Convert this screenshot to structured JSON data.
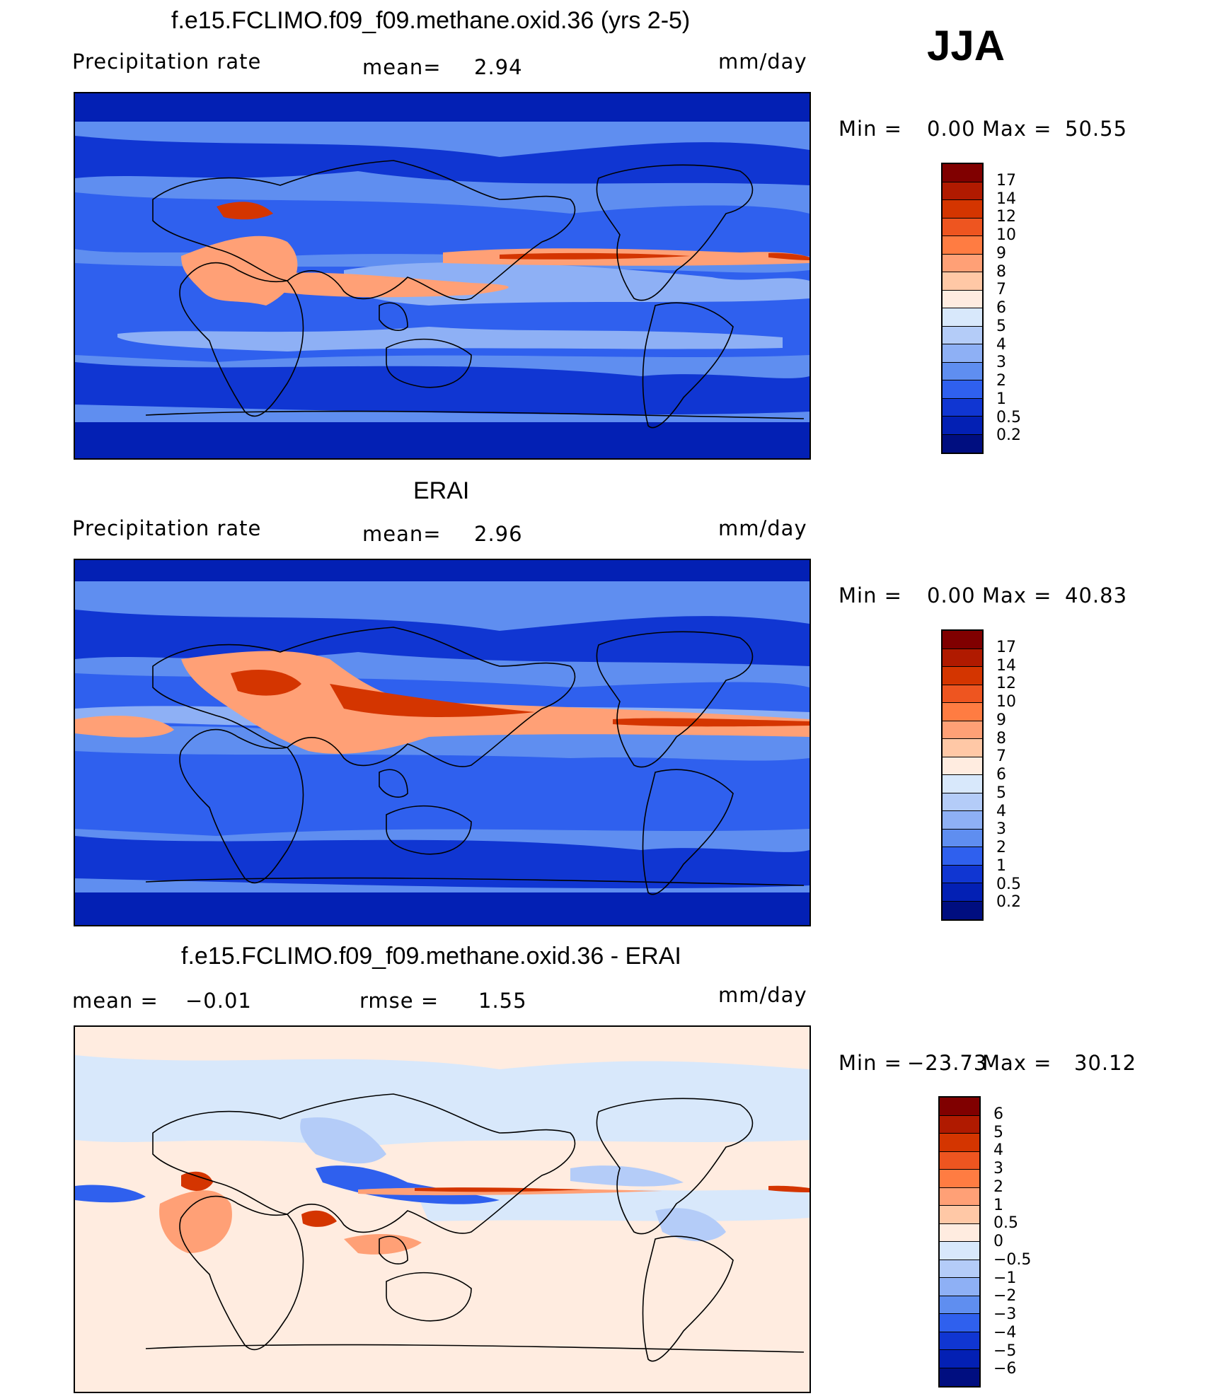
{
  "season": "JJA",
  "panels": [
    {
      "title": "f.e15.FCLIMO.f09_f09.methane.oxid.36 (yrs 2-5)",
      "left_label": "Precipitation  rate",
      "center_label": "mean=",
      "center_value": "2.94",
      "units": "mm/day",
      "minmax": {
        "min_label": "Min  =",
        "min_value": "0.00",
        "max_label": "Max  =",
        "max_value": "50.55"
      }
    },
    {
      "title": "ERAI",
      "left_label": "Precipitation  rate",
      "center_label": "mean=",
      "center_value": "2.96",
      "units": "mm/day",
      "minmax": {
        "min_label": "Min  =",
        "min_value": "0.00",
        "max_label": "Max  =",
        "max_value": "40.83"
      }
    },
    {
      "title": "f.e15.FCLIMO.f09_f09.methane.oxid.36 - ERAI",
      "left_label": "mean  =",
      "left_value": "−0.01",
      "center_label": "rmse  =",
      "center_value": "1.55",
      "units": "mm/day",
      "minmax": {
        "min_label": "Min  =",
        "min_value": "−23.73",
        "max_label": "Max  =",
        "max_value": "30.12"
      }
    }
  ],
  "chart_data": [
    {
      "type": "heatmap",
      "title": "f.e15.FCLIMO.f09_f09.methane.oxid.36 (yrs 2-5)",
      "variable": "Precipitation rate",
      "units": "mm/day",
      "mean": 2.94,
      "min": 0.0,
      "max": 50.55,
      "colorbar_levels": [
        "17",
        "14",
        "12",
        "10",
        "9",
        "8",
        "7",
        "6",
        "5",
        "4",
        "3",
        "2",
        "1",
        "0.5",
        "0.2"
      ],
      "colors": [
        "#800000",
        "#b01a00",
        "#d43500",
        "#ee5520",
        "#ff7c42",
        "#ffa076",
        "#ffc8a6",
        "#ffece0",
        "#d8e8fb",
        "#b4ccf8",
        "#8eb0f5",
        "#5f8ef0",
        "#2f60ee",
        "#1036d2",
        "#0320b4",
        "#000e80"
      ]
    },
    {
      "type": "heatmap",
      "title": "ERAI",
      "variable": "Precipitation rate",
      "units": "mm/day",
      "mean": 2.96,
      "min": 0.0,
      "max": 40.83,
      "colorbar_levels": [
        "17",
        "14",
        "12",
        "10",
        "9",
        "8",
        "7",
        "6",
        "5",
        "4",
        "3",
        "2",
        "1",
        "0.5",
        "0.2"
      ],
      "colors": [
        "#800000",
        "#b01a00",
        "#d43500",
        "#ee5520",
        "#ff7c42",
        "#ffa076",
        "#ffc8a6",
        "#ffece0",
        "#d8e8fb",
        "#b4ccf8",
        "#8eb0f5",
        "#5f8ef0",
        "#2f60ee",
        "#1036d2",
        "#0320b4",
        "#000e80"
      ]
    },
    {
      "type": "heatmap",
      "title": "f.e15.FCLIMO.f09_f09.methane.oxid.36 - ERAI",
      "units": "mm/day",
      "mean": -0.01,
      "rmse": 1.55,
      "min": -23.73,
      "max": 30.12,
      "colorbar_levels": [
        "6",
        "5",
        "4",
        "3",
        "2",
        "1",
        "0.5",
        "0",
        "−0.5",
        "−1",
        "−2",
        "−3",
        "−4",
        "−5",
        "−6"
      ],
      "colors": [
        "#800000",
        "#b01a00",
        "#d43500",
        "#ee5520",
        "#ff7c42",
        "#ffa076",
        "#ffc8a6",
        "#ffece0",
        "#d8e8fb",
        "#b4ccf8",
        "#8eb0f5",
        "#5f8ef0",
        "#2f60ee",
        "#1036d2",
        "#0320b4",
        "#000e80"
      ]
    }
  ]
}
